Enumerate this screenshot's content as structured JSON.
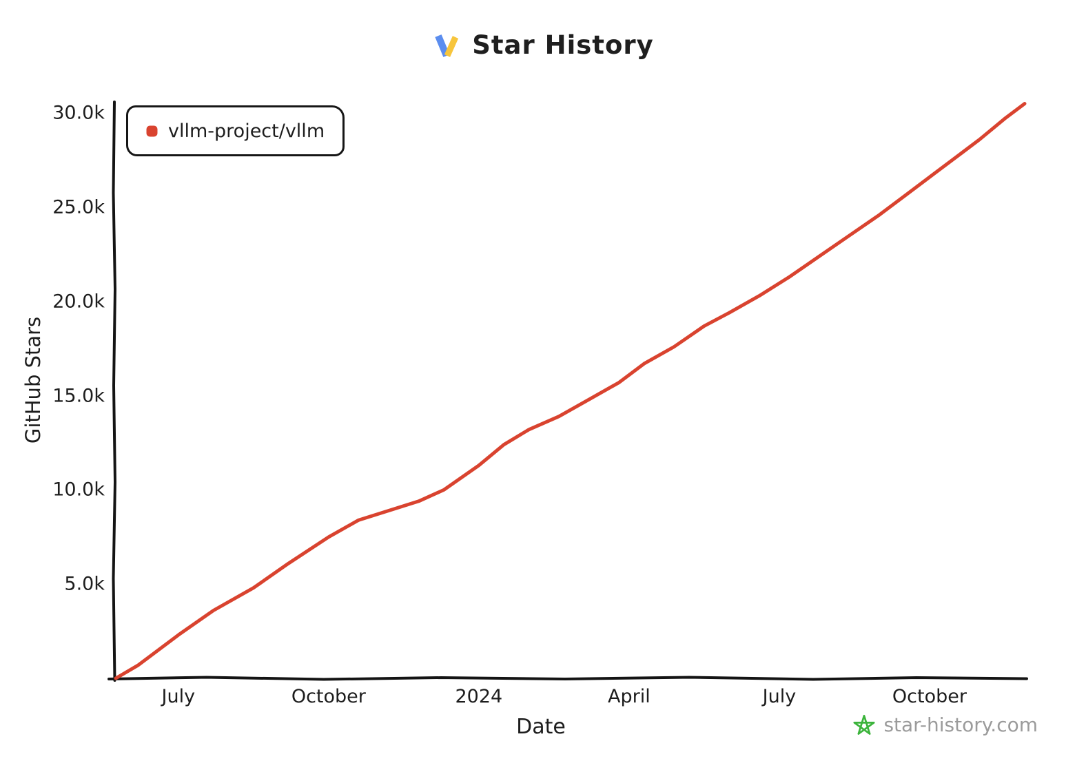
{
  "header": {
    "title": "Star History"
  },
  "logo": {
    "blue": "#5b8def",
    "yellow": "#f7c53c"
  },
  "legend": {
    "items": [
      {
        "label": "vllm-project/vllm",
        "color": "#d9432f"
      }
    ]
  },
  "watermark": {
    "text": "star-history.com",
    "star_color": "#3cb43c"
  },
  "chart_data": {
    "type": "line",
    "title": "Star History",
    "xlabel": "Date",
    "ylabel": "GitHub Stars",
    "x_unit": "months since 2023-06-01",
    "x_range": [
      -0.25,
      17.9
    ],
    "ylim": [
      0,
      30000
    ],
    "grid": false,
    "legend_position": "top-left",
    "y_ticks": [
      {
        "value": 5000,
        "label": "5.0k"
      },
      {
        "value": 10000,
        "label": "10.0k"
      },
      {
        "value": 15000,
        "label": "15.0k"
      },
      {
        "value": 20000,
        "label": "20.0k"
      },
      {
        "value": 25000,
        "label": "25.0k"
      },
      {
        "value": 30000,
        "label": "30.0k"
      }
    ],
    "x_ticks": [
      {
        "pos": 1,
        "label": "July"
      },
      {
        "pos": 4,
        "label": "October"
      },
      {
        "pos": 7,
        "label": "2024"
      },
      {
        "pos": 10,
        "label": "April"
      },
      {
        "pos": 13,
        "label": "July"
      },
      {
        "pos": 16,
        "label": "October"
      }
    ],
    "series": [
      {
        "name": "vllm-project/vllm",
        "color": "#d9432f",
        "points": [
          [
            -0.25,
            0
          ],
          [
            0.2,
            700
          ],
          [
            1,
            2300
          ],
          [
            1.7,
            3600
          ],
          [
            2.5,
            4800
          ],
          [
            3.2,
            6100
          ],
          [
            4,
            7500
          ],
          [
            4.6,
            8400
          ],
          [
            5.2,
            8900
          ],
          [
            5.8,
            9400
          ],
          [
            6.3,
            10000
          ],
          [
            7,
            11300
          ],
          [
            7.5,
            12400
          ],
          [
            8,
            13200
          ],
          [
            8.6,
            13900
          ],
          [
            9.2,
            14800
          ],
          [
            9.8,
            15700
          ],
          [
            10.3,
            16700
          ],
          [
            10.9,
            17600
          ],
          [
            11.5,
            18700
          ],
          [
            12,
            19400
          ],
          [
            12.6,
            20300
          ],
          [
            13.2,
            21300
          ],
          [
            13.8,
            22400
          ],
          [
            14.4,
            23500
          ],
          [
            15,
            24600
          ],
          [
            15.5,
            25600
          ],
          [
            16,
            26600
          ],
          [
            16.5,
            27600
          ],
          [
            17,
            28600
          ],
          [
            17.5,
            29700
          ],
          [
            17.9,
            30500
          ]
        ]
      }
    ]
  }
}
